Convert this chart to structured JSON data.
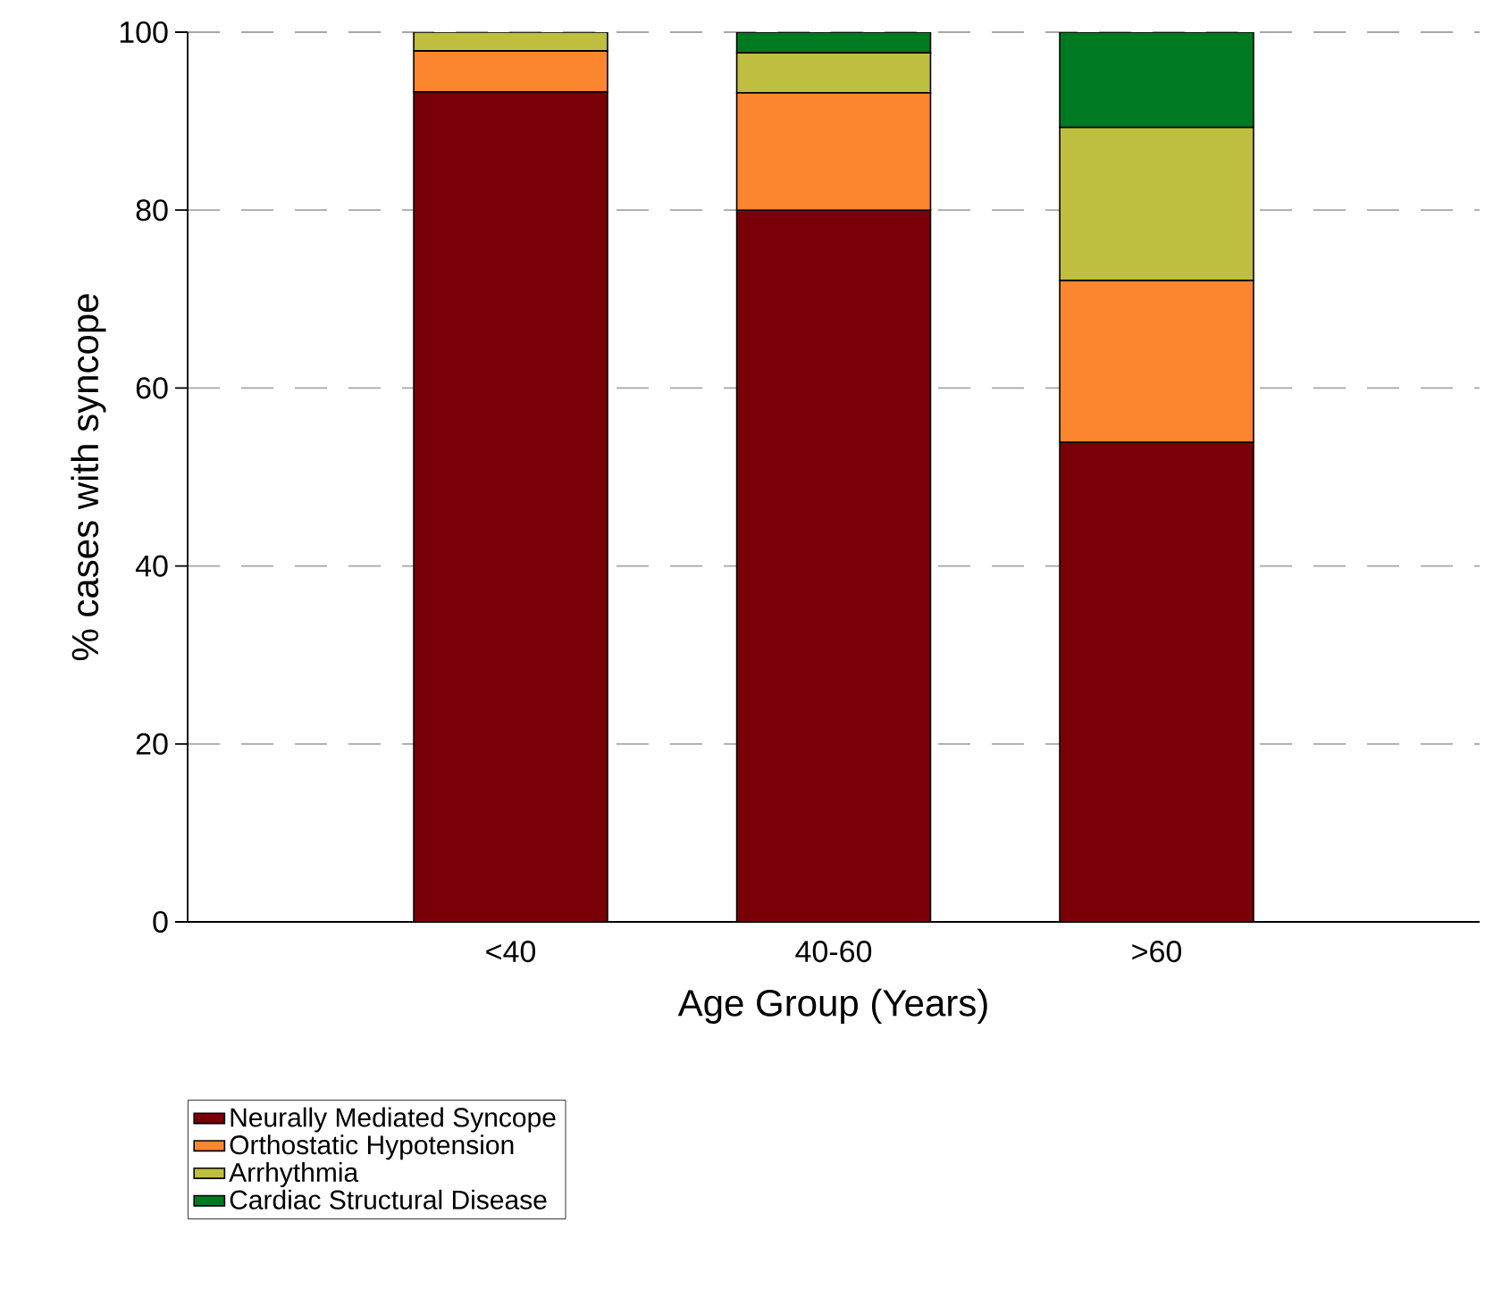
{
  "chart_data": {
    "type": "bar",
    "stacked": true,
    "xlabel": "Age Group (Years)",
    "ylabel": "% cases with syncope",
    "categories": [
      "<40",
      "40-60",
      ">60"
    ],
    "series": [
      {
        "name": "Neurally Mediated Syncope",
        "color": "#7a0008",
        "values": [
          93.3,
          80.0,
          53.9
        ]
      },
      {
        "name": "Orthostatic Hypotension",
        "color": "#fb862f",
        "values": [
          4.6,
          13.2,
          18.2
        ]
      },
      {
        "name": "Arrhythmia",
        "color": "#bebe41",
        "values": [
          2.1,
          4.5,
          17.2
        ]
      },
      {
        "name": "Cardiac Structural Disease",
        "color": "#007a22",
        "values": [
          0,
          2.3,
          10.7
        ]
      }
    ],
    "ylim": [
      0,
      100
    ],
    "yticks": [
      0,
      20,
      40,
      60,
      80,
      100
    ],
    "grid": "y",
    "legend": "bottom left"
  }
}
